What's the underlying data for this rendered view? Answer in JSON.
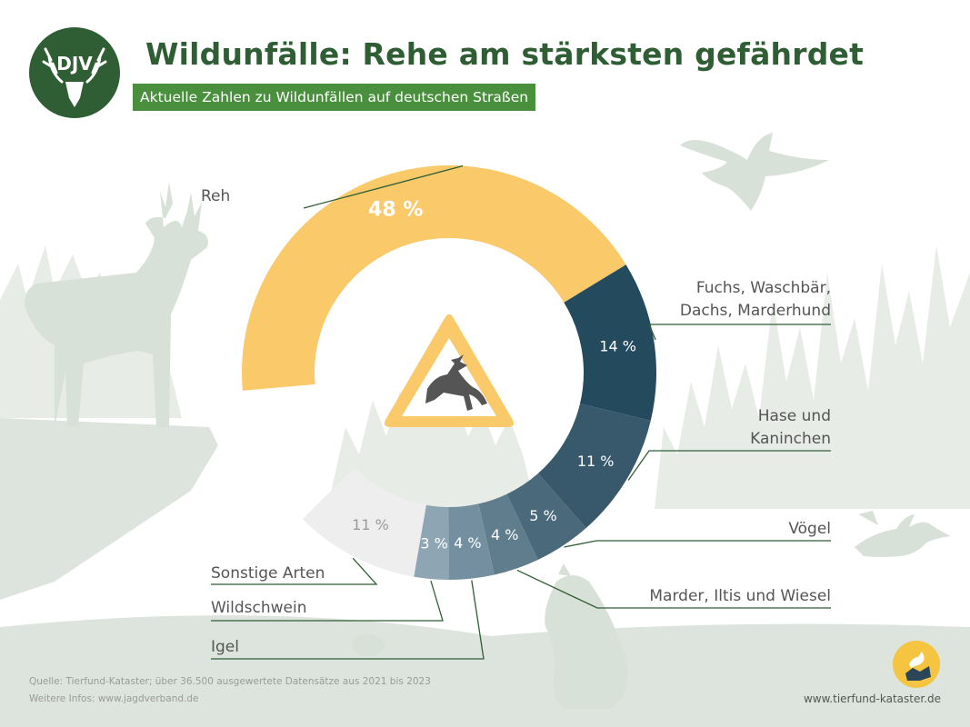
{
  "header": {
    "logo_text": "DJV",
    "title": "Wildunfälle: Rehe am stärksten gefährdet",
    "subtitle": "Aktuelle Zahlen zu Wildunfällen auf deutschen Straßen"
  },
  "chart_data": {
    "type": "donut",
    "title": "Wildunfälle: Rehe am stärksten gefährdet",
    "subtitle": "Aktuelle Zahlen zu Wildunfällen auf deutschen Straßen",
    "unit": "%",
    "slices": [
      {
        "label": "Reh",
        "value": 48,
        "value_label": "48 %",
        "color": "#f9c96a"
      },
      {
        "label": "Fuchs, Waschbär, Dachs, Marderhund",
        "value": 14,
        "value_label": "14 %",
        "color": "#244a5e"
      },
      {
        "label": "Hase und Kaninchen",
        "value": 11,
        "value_label": "11 %",
        "color": "#38596b"
      },
      {
        "label": "Vögel",
        "value": 5,
        "value_label": "5 %",
        "color": "#4a6a7c"
      },
      {
        "label": "Marder, Iltis und Wiesel",
        "value": 4,
        "value_label": "4 %",
        "color": "#5f7d8d"
      },
      {
        "label": "Igel",
        "value": 4,
        "value_label": "4 %",
        "color": "#7490a0"
      },
      {
        "label": "Wildschwein",
        "value": 3,
        "value_label": "3 %",
        "color": "#8ea6b3"
      },
      {
        "label": "Sonstige Arten",
        "value": 11,
        "value_label": "11 %",
        "color": "#eeeeef"
      }
    ]
  },
  "labels": {
    "reh": "Reh",
    "fuchs_line1": "Fuchs, Waschbär,",
    "fuchs_line2": "Dachs, Marderhund",
    "hase_line1": "Hase und",
    "hase_line2": "Kaninchen",
    "voegel": "Vögel",
    "marder": "Marder, Iltis und Wiesel",
    "sonstige": "Sonstige Arten",
    "wildschwein": "Wildschwein",
    "igel": "Igel"
  },
  "footer": {
    "source": "Quelle: Tierfund-Kataster; über 36.500 ausgewertete Datensätze aus 2021 bis 2023",
    "more_info": "Weitere Infos: www.jagdverband.de",
    "url": "www.tierfund-kataster.de"
  },
  "colors": {
    "brand_green": "#2f5e35",
    "subtitle_green": "#4a8f3d",
    "leader_line": "#2f5e35",
    "warning_yellow": "#f9c96a",
    "deer_icon": "#555555",
    "silhouette": "#dfe6df"
  }
}
